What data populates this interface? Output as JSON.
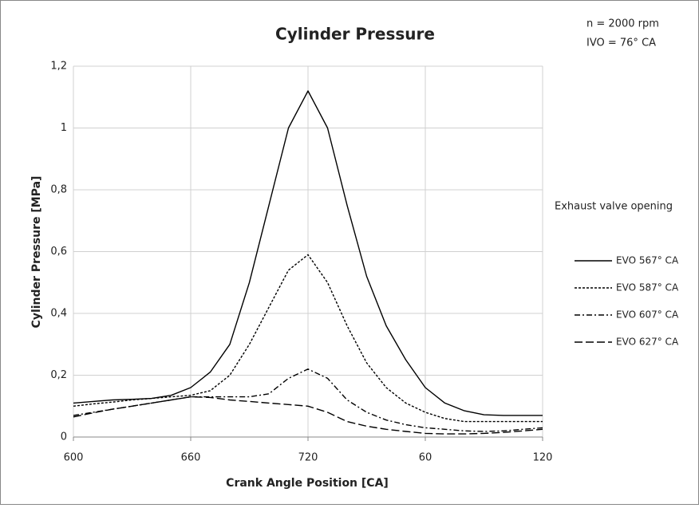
{
  "chart_data": {
    "type": "line",
    "title": "Cylinder Pressure",
    "annotations": [
      "n = 2000 rpm",
      "IVO = 76° CA"
    ],
    "x_label": "Crank Angle Position [CA]",
    "y_label": "Cylinder Pressure [MPa]",
    "legend_title": "Exhaust valve opening",
    "legend": "right",
    "grid": true,
    "xlim": [
      600,
      840
    ],
    "xticks": [
      600,
      660,
      720,
      {
        "value": 780,
        "label": "60"
      },
      {
        "value": 840,
        "label": "120"
      }
    ],
    "ylim": [
      0,
      1.2
    ],
    "yticks": [
      0,
      {
        "value": 0.2,
        "label": "0,2"
      },
      {
        "value": 0.4,
        "label": "0,4"
      },
      {
        "value": 0.6,
        "label": "0,6"
      },
      {
        "value": 0.8,
        "label": "0,8"
      },
      1,
      {
        "value": 1.2,
        "label": "1,2"
      }
    ],
    "x": [
      600,
      610,
      620,
      630,
      640,
      650,
      660,
      670,
      680,
      690,
      700,
      710,
      720,
      730,
      740,
      750,
      760,
      770,
      780,
      790,
      800,
      810,
      820,
      830,
      840
    ],
    "series": [
      {
        "name": "EVO 567° CA",
        "color": "#000000",
        "dash": "none",
        "values": [
          0.11,
          0.115,
          0.12,
          0.122,
          0.125,
          0.135,
          0.16,
          0.21,
          0.3,
          0.5,
          0.75,
          1.0,
          1.12,
          1.0,
          0.75,
          0.52,
          0.36,
          0.25,
          0.16,
          0.11,
          0.085,
          0.072,
          0.07,
          0.07,
          0.07
        ]
      },
      {
        "name": "EVO 587° CA",
        "color": "#000000",
        "dash": "3,2",
        "values": [
          0.1,
          0.107,
          0.113,
          0.12,
          0.125,
          0.13,
          0.135,
          0.15,
          0.2,
          0.3,
          0.42,
          0.54,
          0.59,
          0.5,
          0.36,
          0.24,
          0.16,
          0.11,
          0.08,
          0.06,
          0.05,
          0.05,
          0.05,
          0.05,
          0.05
        ]
      },
      {
        "name": "EVO 607° CA",
        "color": "#000000",
        "dash": "7,3,2,3",
        "values": [
          0.07,
          0.08,
          0.09,
          0.1,
          0.11,
          0.12,
          0.13,
          0.13,
          0.13,
          0.13,
          0.14,
          0.19,
          0.22,
          0.19,
          0.12,
          0.08,
          0.055,
          0.04,
          0.03,
          0.025,
          0.02,
          0.018,
          0.02,
          0.025,
          0.03
        ]
      },
      {
        "name": "EVO 627° CA",
        "color": "#000000",
        "dash": "10,4",
        "values": [
          0.065,
          0.078,
          0.09,
          0.1,
          0.11,
          0.12,
          0.13,
          0.128,
          0.12,
          0.115,
          0.11,
          0.105,
          0.1,
          0.08,
          0.05,
          0.035,
          0.025,
          0.018,
          0.012,
          0.01,
          0.01,
          0.012,
          0.015,
          0.02,
          0.025
        ]
      }
    ]
  }
}
